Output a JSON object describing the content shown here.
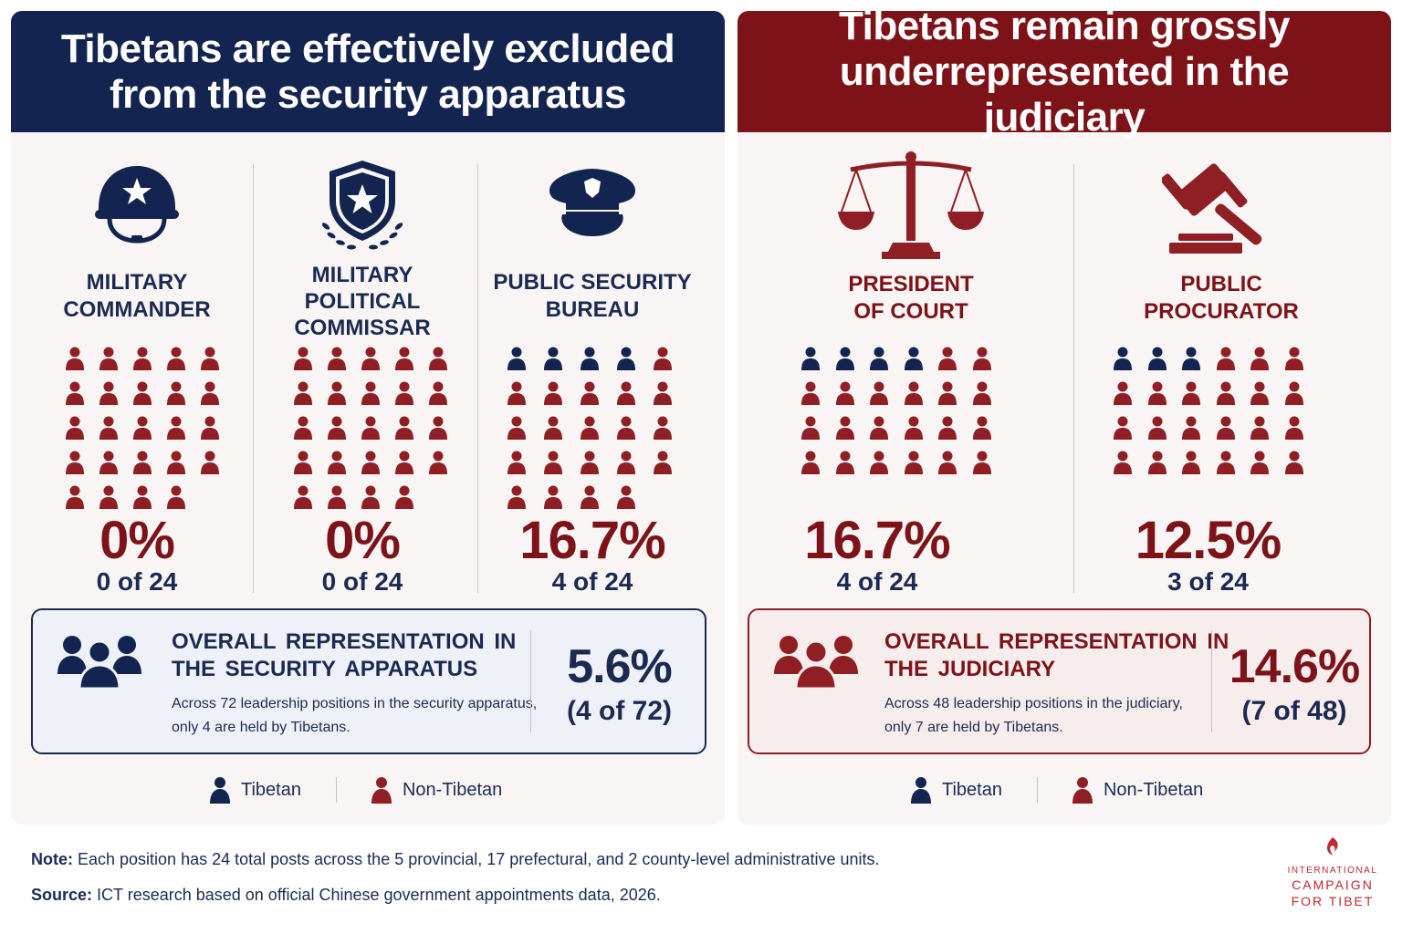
{
  "colors": {
    "tibetan": "#12244f",
    "non_tibetan": "#8f1f24",
    "navy": "#12244f",
    "maroon": "#7d1318"
  },
  "security": {
    "title_line1": "Tibetans are effectively excluded",
    "title_line2": "from the security apparatus",
    "positions": [
      {
        "icon": "military-helmet-icon",
        "label": [
          "MILITARY",
          "COMMANDER"
        ],
        "percent": "0%",
        "count_text": "0 of 24",
        "tibetan": 0,
        "total": 24
      },
      {
        "icon": "shield-star-icon",
        "label": [
          "MILITARY",
          "POLITICAL",
          "COMMISSAR"
        ],
        "percent": "0%",
        "count_text": "0 of 24",
        "tibetan": 0,
        "total": 24
      },
      {
        "icon": "police-cap-icon",
        "label": [
          "PUBLIC SECURITY",
          "BUREAU"
        ],
        "percent": "16.7%",
        "count_text": "4 of 24",
        "tibetan": 4,
        "total": 24
      }
    ],
    "summary": {
      "title_line1": "OVERALL REPRESENTATION IN",
      "title_line2": "THE SECURITY APPARATUS",
      "desc_line1": "Across 72 leadership positions in the security apparatus,",
      "desc_line2": "only 4 are held by Tibetans.",
      "percent": "5.6%",
      "count_text": "(4 of 72)"
    }
  },
  "judiciary": {
    "title_line1": "Tibetans remain grossly",
    "title_line2": "underrepresented in the judiciary",
    "positions": [
      {
        "icon": "scales-of-justice-icon",
        "label": [
          "PRESIDENT",
          "OF COURT"
        ],
        "percent": "16.7%",
        "count_text": "4 of 24",
        "tibetan": 4,
        "total": 24
      },
      {
        "icon": "gavel-icon",
        "label": [
          "PUBLIC",
          "PROCURATOR"
        ],
        "percent": "12.5%",
        "count_text": "3 of 24",
        "tibetan": 3,
        "total": 24
      }
    ],
    "summary": {
      "title_line1": "OVERALL REPRESENTATION IN",
      "title_line2": "THE JUDICIARY",
      "desc_line1": "Across 48 leadership positions in the judiciary,",
      "desc_line2": "only 7 are held by Tibetans.",
      "percent": "14.6%",
      "count_text": "(7 of 48)"
    }
  },
  "legend": {
    "tibetan": "Tibetan",
    "non_tibetan": "Non-Tibetan"
  },
  "footer": {
    "note_label": "Note:",
    "note_text": " Each position has 24 total posts across the 5 provincial, 17 prefectural, and 2 county-level administrative units.",
    "source_label": "Source:",
    "source_text": " ICT research based on official Chinese government appointments data, 2026."
  },
  "logo": {
    "line1": "INTERNATIONAL",
    "line2": "CAMPAIGN",
    "line3": "FOR TIBET"
  }
}
